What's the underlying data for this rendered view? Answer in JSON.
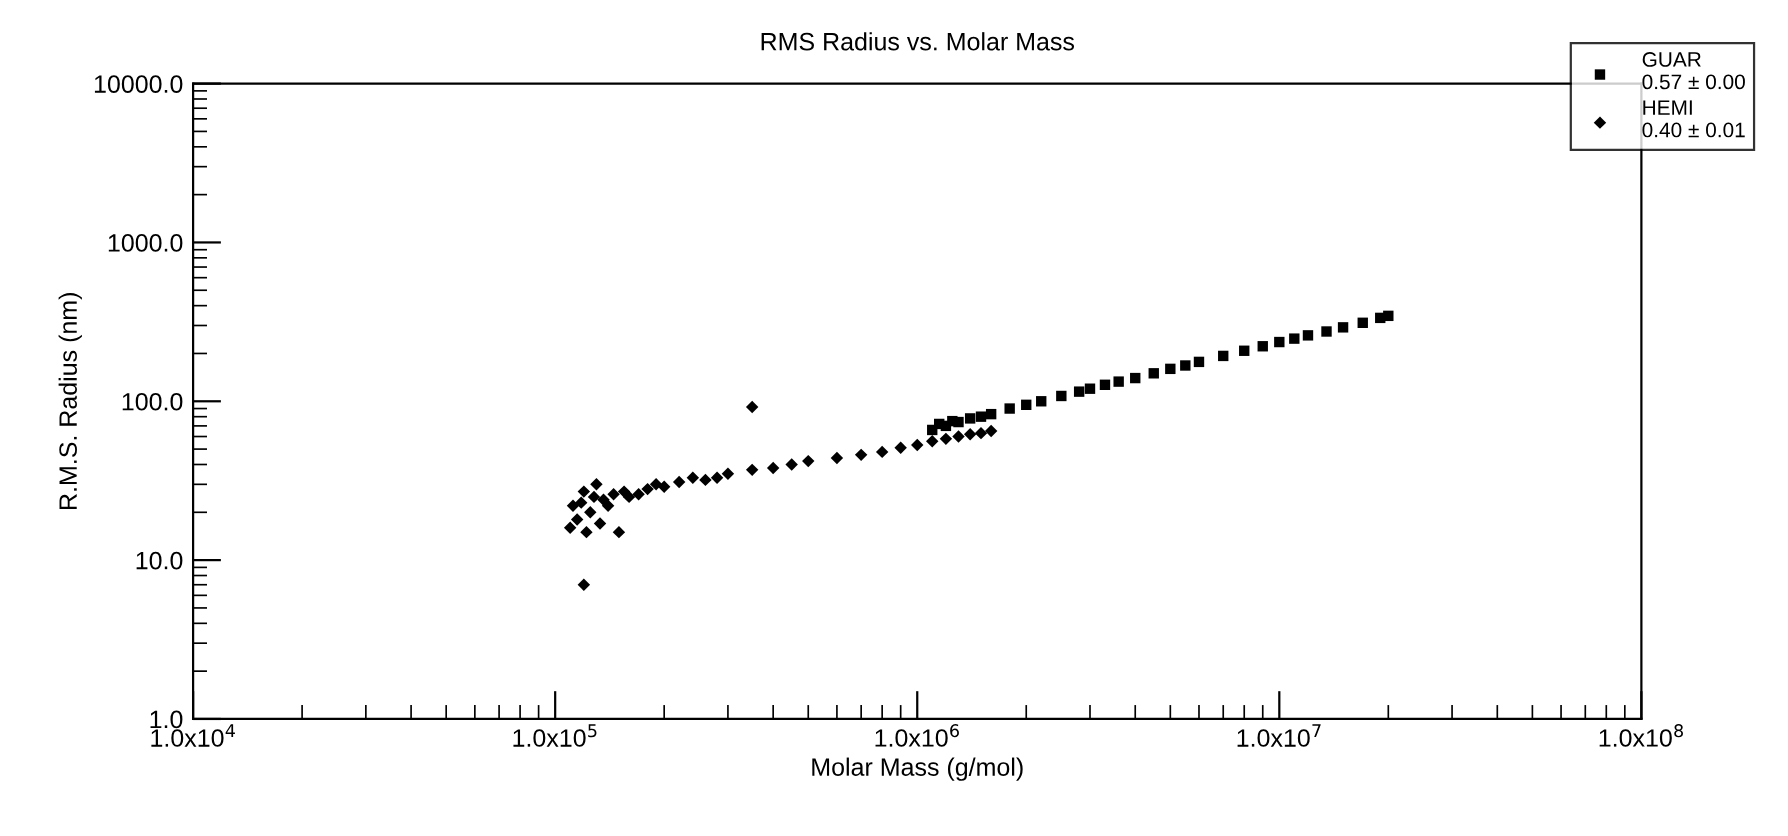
{
  "chart_data": {
    "type": "scatter",
    "title": "RMS Radius vs. Molar Mass",
    "xlabel": "Molar Mass (g/mol)",
    "ylabel": "R.M.S. Radius (nm)",
    "log": "xy",
    "grid": false,
    "legend": "top right",
    "xlim": [
      10000,
      100000000
    ],
    "ylim": [
      1,
      10000
    ],
    "xticks": [
      {
        "value": 10000,
        "label": "1.0x10$^{4}$"
      },
      {
        "value": 100000,
        "label": "1.0x10$^{5}$"
      },
      {
        "value": 1000000,
        "label": "1.0x10$^{6}$"
      },
      {
        "value": 10000000,
        "label": "1.0x10$^{7}$"
      },
      {
        "value": 100000000,
        "label": "1.0x10$^{8}$"
      }
    ],
    "yticks": [
      {
        "value": 1,
        "label": "1.0"
      },
      {
        "value": 10,
        "label": "10.0"
      },
      {
        "value": 100,
        "label": "100.0"
      },
      {
        "value": 1000,
        "label": "1000.0"
      },
      {
        "value": 10000,
        "label": "10000.0"
      }
    ],
    "series": [
      {
        "name": "GUAR\n0.57 ± 0.00",
        "color": "#000000",
        "marker": "square",
        "x": [
          1100000,
          1150000,
          1200000,
          1250000,
          1300000,
          1400000,
          1500000,
          1600000,
          1800000,
          2000000,
          2200000,
          2500000,
          2800000,
          3000000,
          3300000,
          3600000,
          4000000,
          4500000,
          5000000,
          5500000,
          6000000,
          7000000,
          8000000,
          9000000,
          10000000,
          11000000,
          12000000,
          13500000,
          15000000,
          17000000,
          19000000,
          20000000
        ],
        "values": [
          66,
          72,
          70,
          75,
          74,
          78,
          80,
          83,
          90,
          95,
          100,
          108,
          115,
          120,
          127,
          133,
          140,
          150,
          160,
          168,
          177,
          193,
          208,
          222,
          236,
          248,
          260,
          275,
          292,
          312,
          335,
          345
        ]
      },
      {
        "name": "HEMI\n0.40 ± 0.01",
        "color": "#000000",
        "marker": "diamond",
        "x": [
          110000,
          112000,
          115000,
          118000,
          120000,
          122000,
          125000,
          128000,
          130000,
          133000,
          136000,
          140000,
          145000,
          150000,
          155000,
          160000,
          170000,
          180000,
          190000,
          200000,
          220000,
          240000,
          260000,
          280000,
          300000,
          350000,
          400000,
          450000,
          500000,
          600000,
          700000,
          800000,
          900000,
          1000000,
          1100000,
          1200000,
          1300000,
          1400000,
          1500000,
          1600000,
          120000,
          350000
        ],
        "values": [
          16,
          22,
          18,
          23,
          27,
          15,
          20,
          25,
          30,
          17,
          24,
          22,
          26,
          15,
          27,
          25,
          26,
          28,
          30,
          29,
          31,
          33,
          32,
          33,
          35,
          37,
          38,
          40,
          42,
          44,
          46,
          48,
          51,
          53,
          56,
          58,
          60,
          62,
          63,
          65,
          7,
          92
        ]
      }
    ]
  }
}
